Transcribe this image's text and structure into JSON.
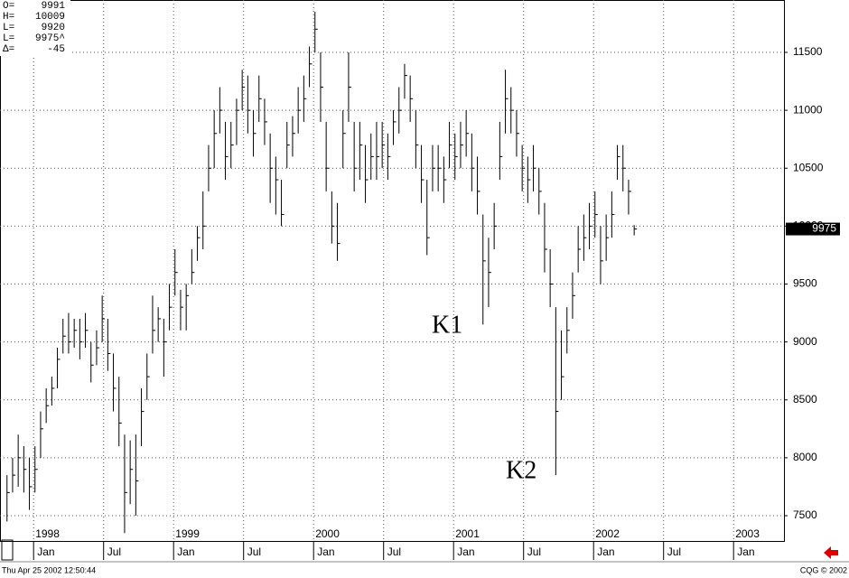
{
  "chart_data": {
    "type": "ohlc",
    "color": "#000000",
    "grid": true,
    "x": [
      1997.81,
      1997.85,
      1997.89,
      1997.93,
      1997.97,
      1998.01,
      1998.05,
      1998.09,
      1998.13,
      1998.17,
      1998.21,
      1998.25,
      1998.29,
      1998.33,
      1998.37,
      1998.41,
      1998.45,
      1998.49,
      1998.53,
      1998.57,
      1998.61,
      1998.65,
      1998.69,
      1998.73,
      1998.77,
      1998.81,
      1998.85,
      1998.89,
      1998.93,
      1998.97,
      1999.01,
      1999.05,
      1999.09,
      1999.13,
      1999.17,
      1999.21,
      1999.25,
      1999.29,
      1999.33,
      1999.37,
      1999.41,
      1999.45,
      1999.49,
      1999.53,
      1999.57,
      1999.61,
      1999.65,
      1999.69,
      1999.73,
      1999.77,
      1999.81,
      1999.85,
      1999.89,
      1999.93,
      1999.97,
      2000.01,
      2000.05,
      2000.09,
      2000.13,
      2000.17,
      2000.21,
      2000.25,
      2000.29,
      2000.33,
      2000.37,
      2000.41,
      2000.45,
      2000.49,
      2000.53,
      2000.57,
      2000.61,
      2000.65,
      2000.69,
      2000.73,
      2000.77,
      2000.81,
      2000.85,
      2000.89,
      2000.93,
      2000.97,
      2001.01,
      2001.05,
      2001.09,
      2001.13,
      2001.17,
      2001.21,
      2001.25,
      2001.29,
      2001.33,
      2001.37,
      2001.41,
      2001.45,
      2001.49,
      2001.53,
      2001.57,
      2001.61,
      2001.65,
      2001.69,
      2001.73,
      2001.77,
      2001.81,
      2001.85,
      2001.89,
      2001.93,
      2001.97,
      2002.01,
      2002.05,
      2002.09,
      2002.13,
      2002.17,
      2002.21,
      2002.25,
      2002.29
    ],
    "high": [
      7850,
      8000,
      8200,
      8100,
      8000,
      8100,
      8400,
      8600,
      8700,
      8950,
      9200,
      9250,
      9200,
      9200,
      9250,
      9000,
      9100,
      9400,
      9200,
      8900,
      8700,
      8200,
      8150,
      8200,
      8600,
      8900,
      9400,
      9300,
      9200,
      9500,
      9800,
      9450,
      9500,
      9800,
      10000,
      10300,
      10700,
      11000,
      11200,
      10900,
      10900,
      11100,
      11350,
      11300,
      11000,
      11300,
      11100,
      10800,
      10600,
      10400,
      10900,
      10950,
      11200,
      11300,
      11550,
      11850,
      11500,
      10900,
      10300,
      10200,
      11000,
      11500,
      10900,
      10900,
      10700,
      10800,
      10900,
      10900,
      10800,
      11000,
      11200,
      11400,
      11300,
      11000,
      10700,
      10400,
      10700,
      10700,
      10600,
      10900,
      10800,
      10900,
      11000,
      10800,
      10600,
      10100,
      9900,
      10200,
      10900,
      11350,
      11200,
      11000,
      10700,
      10600,
      10700,
      10500,
      10200,
      9800,
      9300,
      9100,
      9300,
      9600,
      10000,
      10100,
      10200,
      10300,
      10000,
      10100,
      10300,
      10700,
      10700,
      10400,
      10009
    ],
    "low": [
      7450,
      7700,
      7750,
      7700,
      7550,
      7700,
      8000,
      8300,
      8450,
      8600,
      8900,
      8900,
      8950,
      8850,
      8950,
      8650,
      8800,
      9000,
      8750,
      8400,
      8100,
      7350,
      7600,
      7500,
      8100,
      8500,
      8900,
      9000,
      8700,
      9100,
      9400,
      9100,
      9100,
      9500,
      9700,
      9800,
      10300,
      10500,
      10800,
      10400,
      10500,
      10700,
      11000,
      10800,
      10600,
      10900,
      10700,
      10200,
      10100,
      10000,
      10500,
      10600,
      10800,
      10900,
      11200,
      11500,
      10900,
      10300,
      9850,
      9700,
      10500,
      10900,
      10300,
      10400,
      10200,
      10400,
      10400,
      10500,
      10400,
      10700,
      10800,
      11100,
      10900,
      10500,
      10200,
      9750,
      10300,
      10300,
      10200,
      10500,
      10400,
      10500,
      10600,
      10300,
      10100,
      9150,
      9300,
      9800,
      10400,
      10800,
      10800,
      10600,
      10300,
      10200,
      10300,
      10100,
      9600,
      9300,
      7850,
      8500,
      8900,
      9200,
      9600,
      9700,
      9800,
      9900,
      9500,
      9700,
      9900,
      10400,
      10300,
      10100,
      9920
    ],
    "close": [
      7700,
      7850,
      8000,
      7900,
      7750,
      7900,
      8250,
      8450,
      8600,
      8850,
      9050,
      9000,
      9100,
      9000,
      9100,
      8800,
      8950,
      9200,
      8900,
      8600,
      8300,
      7700,
      7900,
      7800,
      8400,
      8700,
      9100,
      9200,
      9000,
      9300,
      9600,
      9300,
      9400,
      9600,
      9900,
      10000,
      10500,
      10800,
      11000,
      10600,
      10700,
      11000,
      11200,
      11000,
      10800,
      11100,
      10900,
      10500,
      10400,
      10100,
      10700,
      10800,
      11000,
      11100,
      11400,
      11700,
      11200,
      10500,
      10000,
      9850,
      10800,
      11200,
      10500,
      10700,
      10400,
      10600,
      10600,
      10700,
      10600,
      10900,
      11000,
      11300,
      11100,
      10700,
      10400,
      9900,
      10500,
      10500,
      10400,
      10700,
      10600,
      10700,
      10800,
      10500,
      10300,
      9700,
      9600,
      10000,
      10600,
      11100,
      11000,
      10800,
      10500,
      10400,
      10500,
      10300,
      9800,
      9500,
      8400,
      8700,
      9100,
      9400,
      9800,
      9900,
      10000,
      10100,
      9700,
      9900,
      10100,
      10600,
      10500,
      10300,
      9975
    ],
    "xlim": [
      1997.76,
      2003.36
    ],
    "xticks": [
      {
        "value": 1998,
        "label": "Jan"
      },
      {
        "value": 1998.5,
        "label": "Jul"
      },
      {
        "value": 1999,
        "label": "Jan"
      },
      {
        "value": 1999.5,
        "label": "Jul"
      },
      {
        "value": 2000,
        "label": "Jan"
      },
      {
        "value": 2000.5,
        "label": "Jul"
      },
      {
        "value": 2001,
        "label": "Jan"
      },
      {
        "value": 2001.5,
        "label": "Jul"
      },
      {
        "value": 2002,
        "label": "Jan"
      },
      {
        "value": 2002.5,
        "label": "Jul"
      },
      {
        "value": 2003,
        "label": "Jan"
      }
    ],
    "year_ticks": [
      1998,
      1999,
      2000,
      2001,
      2002,
      2003
    ],
    "ylim": [
      7274,
      11952
    ],
    "yticks": [
      7500,
      8000,
      8500,
      9000,
      9500,
      10000,
      10500,
      11000,
      11500
    ],
    "last_label": "9975",
    "info": [
      {
        "label": "O=",
        "value": "9991"
      },
      {
        "label": "H=",
        "value": "10009"
      },
      {
        "label": "L=",
        "value": "9920"
      },
      {
        "label": "L=",
        "value": "9975^"
      },
      {
        "label": "Δ=",
        "value": "-45"
      }
    ],
    "annotations": [
      "K1",
      "K2"
    ],
    "footer_left": "Thu Apr 25 2002 12:50:44",
    "footer_right": "CQG © 2002"
  }
}
